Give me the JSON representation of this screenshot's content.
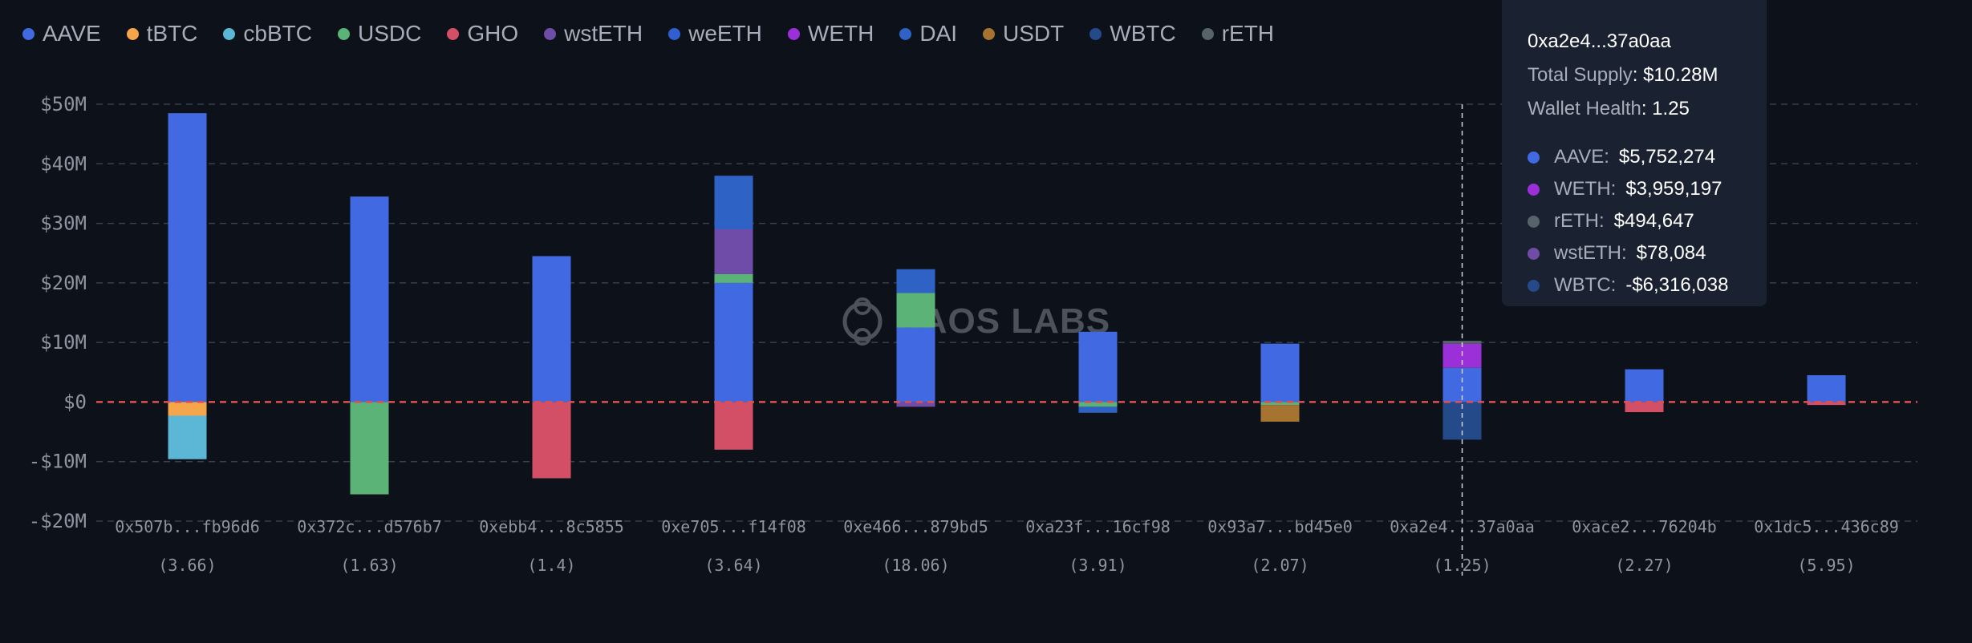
{
  "legend": [
    {
      "name": "AAVE",
      "color": "#4169e1"
    },
    {
      "name": "tBTC",
      "color": "#f5a54a"
    },
    {
      "name": "cbBTC",
      "color": "#5bb7d5"
    },
    {
      "name": "USDC",
      "color": "#5cb378"
    },
    {
      "name": "GHO",
      "color": "#d24f66"
    },
    {
      "name": "wstETH",
      "color": "#6f4ca8"
    },
    {
      "name": "weETH",
      "color": "#2f5fd0"
    },
    {
      "name": "WETH",
      "color": "#9b30d9"
    },
    {
      "name": "DAI",
      "color": "#2e62c4"
    },
    {
      "name": "USDT",
      "color": "#a67430"
    },
    {
      "name": "WBTC",
      "color": "#254a8a"
    },
    {
      "name": "rETH",
      "color": "#56636b"
    }
  ],
  "watermark": "HAOS LABS",
  "tooltip": {
    "address": "0xa2e4...37a0aa",
    "supply_label": "Total Supply",
    "supply_value": ": $10.28M",
    "health_label": "Wallet Health",
    "health_value": ": 1.25",
    "entries": [
      {
        "name": "AAVE:",
        "value": "$5,752,274",
        "color": "#4169e1"
      },
      {
        "name": "WETH:",
        "value": "$3,959,197",
        "color": "#9b30d9"
      },
      {
        "name": "rETH:",
        "value": "$494,647",
        "color": "#56636b"
      },
      {
        "name": "wstETH:",
        "value": "$78,084",
        "color": "#6f4ca8"
      },
      {
        "name": "WBTC:",
        "value": "-$6,316,038",
        "color": "#254a8a"
      }
    ]
  },
  "chart_data": {
    "type": "bar",
    "stacked": true,
    "ylim": [
      -20,
      50
    ],
    "yticks": [
      50,
      40,
      30,
      20,
      10,
      0,
      -10,
      -20
    ],
    "ytick_labels": [
      "$50M",
      "$40M",
      "$30M",
      "$20M",
      "$10M",
      "$0",
      "-$10M",
      "-$20M"
    ],
    "legend_position": "top",
    "highlighted_index": 7,
    "categories": [
      "0x507b...fb96d6",
      "0x372c...d576b7",
      "0xebb4...8c5855",
      "0xe705...f14f08",
      "0xe466...879bd5",
      "0xa23f...16cf98",
      "0x93a7...bd45e0",
      "0xa2e4...37a0aa",
      "0xace2...76204b",
      "0x1dc5...436c89"
    ],
    "health": [
      "(3.66)",
      "(1.63)",
      "(1.4)",
      "(3.64)",
      "(18.06)",
      "(3.91)",
      "(2.07)",
      "(1.25)",
      "(2.27)",
      "(5.95)"
    ],
    "series": [
      {
        "name": "AAVE",
        "color": "#4169e1",
        "values": [
          48.5,
          34.5,
          24.5,
          20.0,
          12.5,
          11.8,
          9.8,
          5.75,
          5.5,
          4.5
        ]
      },
      {
        "name": "tBTC",
        "color": "#f5a54a",
        "values": [
          -2.3,
          0,
          0,
          0,
          0,
          0,
          0,
          0,
          0,
          0
        ]
      },
      {
        "name": "cbBTC",
        "color": "#5bb7d5",
        "values": [
          -7.3,
          0,
          0,
          0,
          0,
          0,
          0,
          0,
          0,
          0
        ]
      },
      {
        "name": "USDC",
        "color": "#5cb378",
        "values": [
          0,
          -15.5,
          0,
          1.5,
          5.8,
          -0.8,
          -0.5,
          0,
          0,
          0
        ]
      },
      {
        "name": "GHO",
        "color": "#d24f66",
        "values": [
          0,
          0,
          -12.8,
          -8.0,
          0,
          0,
          0,
          0,
          -1.7,
          -0.5
        ]
      },
      {
        "name": "wstETH",
        "color": "#6f4ca8",
        "values": [
          0,
          0,
          0,
          7.5,
          -0.8,
          0,
          0,
          0.08,
          0,
          0
        ]
      },
      {
        "name": "weETH",
        "color": "#2f5fd0",
        "values": [
          0,
          0,
          0,
          0,
          0,
          0,
          0,
          0,
          0,
          0
        ]
      },
      {
        "name": "WETH",
        "color": "#9b30d9",
        "values": [
          0,
          0,
          0,
          0,
          0,
          0,
          0,
          3.96,
          0,
          0
        ]
      },
      {
        "name": "DAI",
        "color": "#2e62c4",
        "values": [
          0,
          0,
          0,
          9.0,
          4.0,
          -1.0,
          0,
          0,
          0,
          0
        ]
      },
      {
        "name": "USDT",
        "color": "#a67430",
        "values": [
          0,
          0,
          0,
          0,
          0,
          0,
          -2.8,
          0,
          0,
          0
        ]
      },
      {
        "name": "WBTC",
        "color": "#254a8a",
        "values": [
          0,
          0,
          0,
          0,
          0,
          0,
          0,
          -6.32,
          0,
          0
        ]
      },
      {
        "name": "rETH",
        "color": "#56636b",
        "values": [
          0,
          0,
          0,
          0,
          0,
          0,
          0,
          0.49,
          0,
          0
        ]
      }
    ]
  }
}
